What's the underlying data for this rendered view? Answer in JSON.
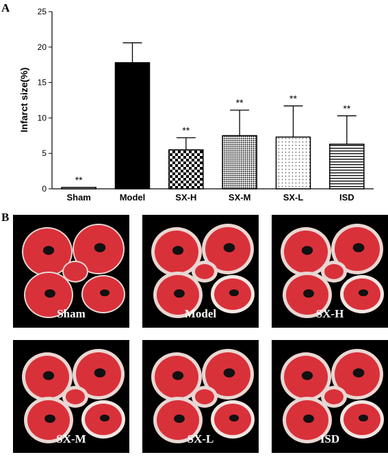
{
  "panel_a": {
    "letter": "A"
  },
  "panel_b": {
    "letter": "B"
  },
  "chart_data": {
    "type": "bar",
    "ylabel": "Infarct size(%)",
    "xlabel": "",
    "ylim": [
      0,
      25
    ],
    "yticks": [
      0,
      5,
      10,
      15,
      20,
      25
    ],
    "categories": [
      "Sham",
      "Model",
      "SX-H",
      "SX-M",
      "SX-L",
      "ISD"
    ],
    "values": [
      0.2,
      17.8,
      5.5,
      7.5,
      7.3,
      6.3
    ],
    "error_upper": [
      0,
      2.8,
      1.7,
      3.6,
      4.4,
      4.0
    ],
    "annotations": [
      "**",
      "",
      "**",
      "**",
      "**",
      "**"
    ],
    "fills": [
      "white",
      "black",
      "checker",
      "dots-dense",
      "dots-sparse",
      "hlines"
    ],
    "grid": false
  },
  "tissue_panels": [
    {
      "label": "Sham"
    },
    {
      "label": "Model"
    },
    {
      "label": "SX-H"
    },
    {
      "label": "SX-M"
    },
    {
      "label": "SX-L"
    },
    {
      "label": "ISD"
    }
  ],
  "colors": {
    "tissue_red": "#d9313a",
    "tissue_pale": "#f3e6e2",
    "background": "#000000"
  }
}
